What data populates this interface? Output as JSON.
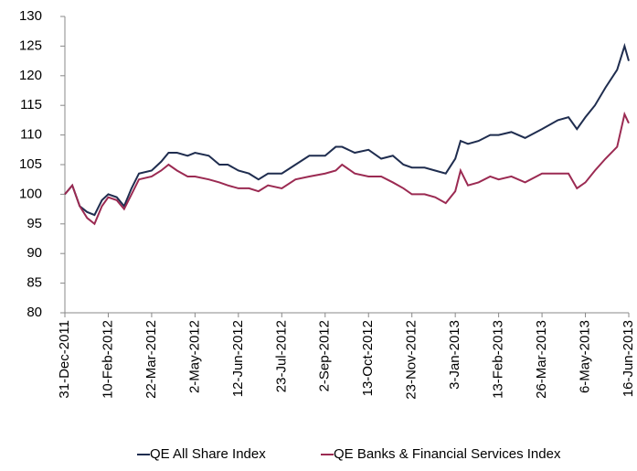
{
  "chart_data": {
    "type": "line",
    "x": [
      "31-Dec-2011",
      "7-Jan-2012",
      "14-Jan-2012",
      "21-Jan-2012",
      "28-Jan-2012",
      "4-Feb-2012",
      "10-Feb-2012",
      "18-Feb-2012",
      "25-Feb-2012",
      "3-Mar-2012",
      "10-Mar-2012",
      "22-Mar-2012",
      "31-Mar-2012",
      "7-Apr-2012",
      "15-Apr-2012",
      "25-Apr-2012",
      "2-May-2012",
      "15-May-2012",
      "25-May-2012",
      "2-Jun-2012",
      "12-Jun-2012",
      "22-Jun-2012",
      "1-Jul-2012",
      "10-Jul-2012",
      "23-Jul-2012",
      "5-Aug-2012",
      "18-Aug-2012",
      "2-Sep-2012",
      "12-Sep-2012",
      "18-Sep-2012",
      "30-Sep-2012",
      "13-Oct-2012",
      "25-Oct-2012",
      "5-Nov-2012",
      "15-Nov-2012",
      "23-Nov-2012",
      "5-Dec-2012",
      "15-Dec-2012",
      "25-Dec-2012",
      "3-Jan-2013",
      "8-Jan-2013",
      "15-Jan-2013",
      "25-Jan-2013",
      "5-Feb-2013",
      "13-Feb-2013",
      "25-Feb-2013",
      "10-Mar-2013",
      "26-Mar-2013",
      "10-Apr-2013",
      "20-Apr-2013",
      "28-Apr-2013",
      "6-May-2013",
      "15-May-2013",
      "25-May-2013",
      "5-Jun-2013",
      "12-Jun-2013",
      "16-Jun-2013"
    ],
    "series": [
      {
        "name": "QE All Share Index",
        "color": "#1f2d4f",
        "values": [
          100,
          101.5,
          98,
          97,
          96.5,
          99,
          100,
          99.5,
          98,
          101,
          103.5,
          104,
          105.5,
          107,
          107,
          106.5,
          107,
          106.5,
          105,
          105,
          104,
          103.5,
          102.5,
          103.5,
          103.5,
          105,
          106.5,
          106.5,
          108,
          108,
          107,
          107.5,
          106,
          106.5,
          105,
          104.5,
          104.5,
          104,
          103.5,
          106,
          109,
          108.5,
          109,
          110,
          110,
          110.5,
          109.5,
          111,
          112.5,
          113,
          111,
          113,
          115,
          118,
          121,
          125,
          122.5
        ]
      },
      {
        "name": "QE Banks & Financial Services Index",
        "color": "#9b2a52",
        "values": [
          100,
          101.5,
          98,
          96,
          95,
          98,
          99.5,
          99,
          97.5,
          100,
          102.5,
          103,
          104,
          105,
          104,
          103,
          103,
          102.5,
          102,
          101.5,
          101,
          101,
          100.5,
          101.5,
          101,
          102.5,
          103,
          103.5,
          104,
          105,
          103.5,
          103,
          103,
          102,
          101,
          100,
          100,
          99.5,
          98.5,
          100.5,
          104,
          101.5,
          102,
          103,
          102.5,
          103,
          102,
          103.5,
          103.5,
          103.5,
          101,
          102,
          104,
          106,
          108,
          113.5,
          112
        ]
      }
    ],
    "xticks": [
      "31-Dec-2011",
      "10-Feb-2012",
      "22-Mar-2012",
      "2-May-2012",
      "12-Jun-2012",
      "23-Jul-2012",
      "2-Sep-2012",
      "13-Oct-2012",
      "23-Nov-2012",
      "3-Jan-2013",
      "13-Feb-2013",
      "26-Mar-2013",
      "6-May-2013",
      "16-Jun-2013"
    ],
    "xlim": [
      "31-Dec-2011",
      "16-Jun-2013"
    ],
    "ylim": [
      80,
      130
    ],
    "yticks": [
      80,
      85,
      90,
      95,
      100,
      105,
      110,
      115,
      120,
      125,
      130
    ]
  }
}
